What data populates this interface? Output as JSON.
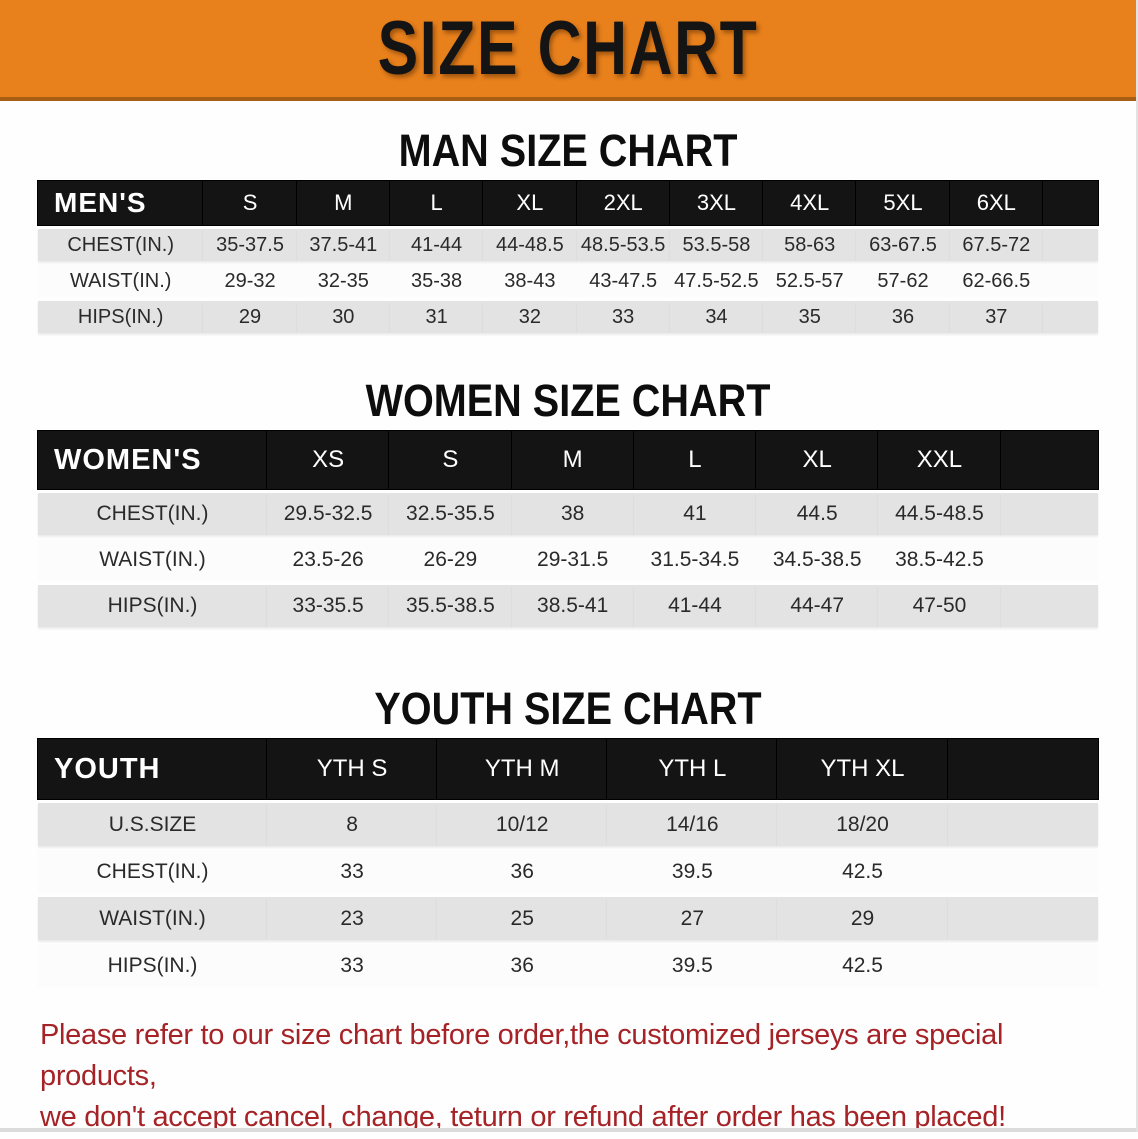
{
  "banner": {
    "title": "SIZE CHART",
    "background_color": "#E8811C",
    "text_color": "#141414"
  },
  "sections": [
    {
      "heading": "MAN SIZE CHART",
      "table": {
        "header_label": "MEN'S",
        "columns": [
          "S",
          "M",
          "L",
          "XL",
          "2XL",
          "3XL",
          "4XL",
          "5XL",
          "6XL"
        ],
        "rows": [
          {
            "label": "CHEST(IN.)",
            "values": [
              "35-37.5",
              "37.5-41",
              "41-44",
              "44-48.5",
              "48.5-53.5",
              "53.5-58",
              "58-63",
              "63-67.5",
              "67.5-72"
            ]
          },
          {
            "label": "WAIST(IN.)",
            "values": [
              "29-32",
              "32-35",
              "35-38",
              "38-43",
              "43-47.5",
              "47.5-52.5",
              "52.5-57",
              "57-62",
              "62-66.5"
            ]
          },
          {
            "label": "HIPS(IN.)",
            "values": [
              "29",
              "30",
              "31",
              "32",
              "33",
              "34",
              "35",
              "36",
              "37"
            ]
          }
        ]
      }
    },
    {
      "heading": "WOMEN SIZE CHART",
      "table": {
        "header_label": "WOMEN'S",
        "columns": [
          "XS",
          "S",
          "M",
          "L",
          "XL",
          "XXL"
        ],
        "rows": [
          {
            "label": "CHEST(IN.)",
            "values": [
              "29.5-32.5",
              "32.5-35.5",
              "38",
              "41",
              "44.5",
              "44.5-48.5"
            ]
          },
          {
            "label": "WAIST(IN.)",
            "values": [
              "23.5-26",
              "26-29",
              "29-31.5",
              "31.5-34.5",
              "34.5-38.5",
              "38.5-42.5"
            ]
          },
          {
            "label": "HIPS(IN.)",
            "values": [
              "33-35.5",
              "35.5-38.5",
              "38.5-41",
              "41-44",
              "44-47",
              "47-50"
            ]
          }
        ]
      }
    },
    {
      "heading": "YOUTH SIZE CHART",
      "table": {
        "header_label": "YOUTH",
        "columns": [
          "YTH S",
          "YTH M",
          "YTH L",
          "YTH XL"
        ],
        "rows": [
          {
            "label": "U.S.SIZE",
            "values": [
              "8",
              "10/12",
              "14/16",
              "18/20"
            ]
          },
          {
            "label": "CHEST(IN.)",
            "values": [
              "33",
              "36",
              "39.5",
              "42.5"
            ]
          },
          {
            "label": "WAIST(IN.)",
            "values": [
              "23",
              "25",
              "27",
              "29"
            ]
          },
          {
            "label": "HIPS(IN.)",
            "values": [
              "33",
              "36",
              "39.5",
              "42.5"
            ]
          }
        ]
      }
    }
  ],
  "footnote": {
    "color": "#A52226",
    "lines": [
      "Please refer to our size chart before order,the customized jerseys are special products,",
      "we don't accept cancel, change, teturn or refund after order has been placed!"
    ]
  }
}
